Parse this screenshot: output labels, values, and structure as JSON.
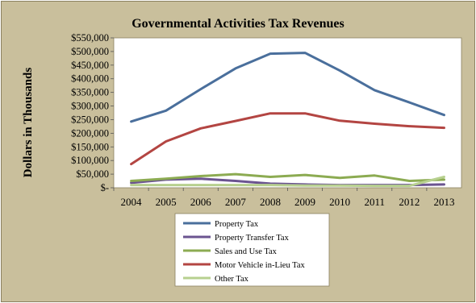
{
  "chart_data": {
    "type": "line",
    "title": "Governmental Activities Tax Revenues",
    "xlabel": "",
    "ylabel": "Dollars in Thousands",
    "x": [
      "2004",
      "2005",
      "2006",
      "2007",
      "2008",
      "2009",
      "2010",
      "2011",
      "2012",
      "2013"
    ],
    "ylim": [
      0,
      550000
    ],
    "yticks": [
      0,
      50000,
      100000,
      150000,
      200000,
      250000,
      300000,
      350000,
      400000,
      450000,
      500000,
      550000
    ],
    "ytick_labels": [
      "$-",
      "$50,000",
      "$100,000",
      "$150,000",
      "$200,000",
      "$250,000",
      "$300,000",
      "$350,000",
      "$400,000",
      "$450,000",
      "$500,000",
      "$550,000"
    ],
    "grid": false,
    "legend_position": "bottom",
    "series": [
      {
        "name": "Property Tax",
        "color": "#4a6f9c",
        "values": [
          243000,
          283000,
          362000,
          438000,
          492000,
          495000,
          430000,
          358000,
          313000,
          267000
        ]
      },
      {
        "name": "Property Transfer Tax",
        "color": "#6b5490",
        "values": [
          18000,
          30000,
          33000,
          25000,
          15000,
          12000,
          10000,
          10000,
          10000,
          12000
        ]
      },
      {
        "name": "Sales and Use Tax",
        "color": "#8cab52",
        "values": [
          25000,
          33000,
          43000,
          50000,
          40000,
          47000,
          36000,
          45000,
          25000,
          30000
        ]
      },
      {
        "name": "Motor Vehicle in-Lieu Tax",
        "color": "#b34542",
        "values": [
          87000,
          170000,
          218000,
          245000,
          273000,
          273000,
          246000,
          235000,
          226000,
          220000
        ]
      },
      {
        "name": "Other Tax",
        "color": "#b7d08f",
        "values": [
          10000,
          10000,
          10000,
          10000,
          10000,
          8000,
          8000,
          7000,
          7000,
          40000
        ]
      }
    ]
  }
}
